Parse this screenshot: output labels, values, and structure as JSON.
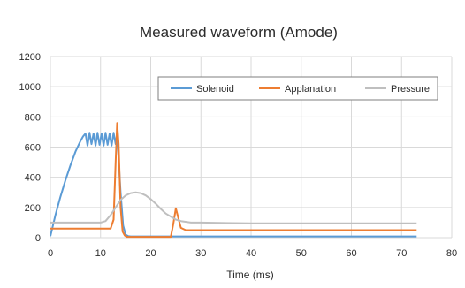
{
  "chart_data": {
    "type": "line",
    "title": "Measured waveform (Amode)",
    "xlabel": "Time (ms)",
    "ylabel": "",
    "xlim": [
      0,
      80
    ],
    "ylim": [
      0,
      1200
    ],
    "xticks": [
      "0",
      "10",
      "20",
      "30",
      "40",
      "50",
      "60",
      "70",
      "80"
    ],
    "yticks": [
      "0",
      "200",
      "400",
      "600",
      "800",
      "1000",
      "1200"
    ],
    "grid": true,
    "legend_position": "top-right",
    "series": [
      {
        "name": "Solenoid",
        "color": "#5b9bd5",
        "x": [
          0,
          1,
          2,
          3,
          4,
          5,
          6,
          6.5,
          7,
          7.4,
          7.8,
          8.2,
          8.6,
          9.0,
          9.4,
          9.8,
          10.2,
          10.6,
          11.0,
          11.4,
          11.8,
          12.2,
          12.6,
          13.0,
          13.3,
          13.6,
          14.0,
          14.5,
          15.0,
          15.5,
          16,
          17,
          20,
          30,
          40,
          50,
          60,
          70,
          73
        ],
        "y": [
          10,
          150,
          270,
          380,
          480,
          570,
          640,
          670,
          690,
          610,
          695,
          620,
          690,
          610,
          695,
          615,
          690,
          610,
          695,
          615,
          690,
          610,
          695,
          620,
          690,
          520,
          300,
          80,
          20,
          10,
          8,
          8,
          8,
          8,
          8,
          8,
          8,
          8,
          8
        ]
      },
      {
        "name": "Applanation",
        "color": "#ed7d31",
        "x": [
          0,
          5,
          10,
          12,
          12.6,
          13.0,
          13.3,
          13.6,
          14.0,
          14.4,
          14.8,
          15.2,
          16,
          20,
          24,
          24.5,
          25,
          25.5,
          26,
          27,
          30,
          40,
          50,
          60,
          70,
          73
        ],
        "y": [
          60,
          60,
          60,
          60,
          120,
          500,
          760,
          620,
          200,
          40,
          15,
          5,
          5,
          5,
          5,
          90,
          195,
          130,
          65,
          50,
          50,
          50,
          50,
          50,
          50,
          50
        ]
      },
      {
        "name": "Pressure",
        "color": "#bfbfbf",
        "x": [
          0,
          5,
          10,
          11,
          12,
          13,
          14,
          15,
          16,
          17,
          18,
          19,
          20,
          21,
          22,
          23,
          24,
          25,
          26,
          28,
          30,
          40,
          50,
          60,
          70,
          73
        ],
        "y": [
          100,
          100,
          100,
          110,
          150,
          200,
          250,
          280,
          295,
          300,
          295,
          280,
          255,
          225,
          190,
          160,
          140,
          120,
          110,
          100,
          100,
          95,
          95,
          95,
          95,
          95
        ]
      }
    ]
  }
}
